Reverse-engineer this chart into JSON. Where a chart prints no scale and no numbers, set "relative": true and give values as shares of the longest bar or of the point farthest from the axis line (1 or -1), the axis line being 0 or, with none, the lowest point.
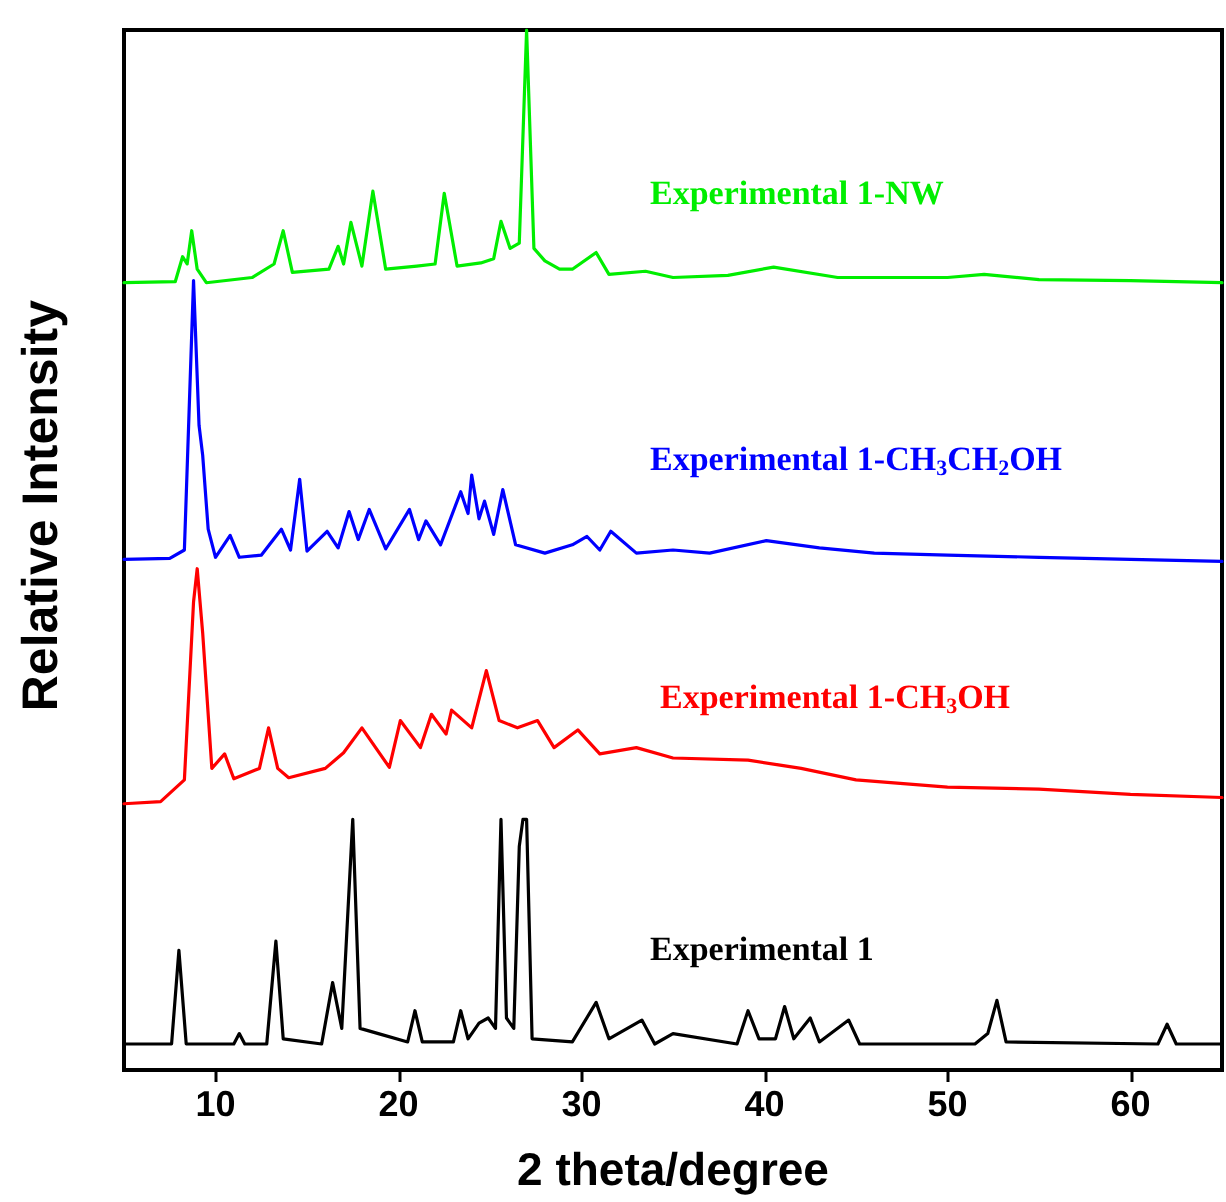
{
  "chart_data": {
    "type": "line",
    "relative": true,
    "xlabel": "2 theta/degree",
    "ylabel": "Relative Intensity",
    "xlim": [
      5,
      65
    ],
    "xticks": [
      10,
      20,
      30,
      40,
      50,
      60
    ],
    "grid": false,
    "legend": false,
    "marker": "none",
    "series": [
      {
        "name": "Experimental 1-NW",
        "color": "#00ee00",
        "x": [
          5,
          7.8,
          8.2,
          8.45,
          8.7,
          9.0,
          9.5,
          12,
          13.2,
          13.7,
          14.2,
          16.2,
          16.7,
          17.0,
          17.4,
          18.0,
          18.6,
          19.3,
          21,
          22.0,
          22.5,
          23.2,
          24.5,
          25.2,
          25.6,
          26.1,
          26.6,
          27.0,
          27.4,
          28,
          28.8,
          29.5,
          30.8,
          31.5,
          33.5,
          35,
          38,
          40.5,
          44,
          47,
          50,
          52,
          55,
          60,
          65
        ],
        "values": [
          0.757,
          0.758,
          0.782,
          0.775,
          0.807,
          0.77,
          0.757,
          0.762,
          0.775,
          0.807,
          0.767,
          0.77,
          0.792,
          0.775,
          0.815,
          0.773,
          0.845,
          0.77,
          0.773,
          0.775,
          0.843,
          0.773,
          0.776,
          0.78,
          0.816,
          0.79,
          0.795,
          1.0,
          0.79,
          0.778,
          0.77,
          0.77,
          0.786,
          0.765,
          0.768,
          0.762,
          0.764,
          0.772,
          0.762,
          0.762,
          0.762,
          0.765,
          0.76,
          0.759,
          0.757
        ]
      },
      {
        "name": "Experimental 1-CH$_{3}$CH$_{2}$OH",
        "color": "#0000ff",
        "x": [
          5,
          7.5,
          8.3,
          8.8,
          9.1,
          9.3,
          9.6,
          10,
          10.8,
          11.3,
          12.5,
          13.6,
          14.1,
          14.6,
          15,
          16.1,
          16.7,
          17.3,
          17.8,
          18.4,
          19.3,
          20.6,
          21.1,
          21.5,
          22.3,
          23.4,
          23.8,
          24.0,
          24.4,
          24.7,
          25.2,
          25.7,
          26.4,
          28,
          29.5,
          30.3,
          31,
          31.6,
          33,
          35,
          37,
          40.1,
          43,
          46,
          50,
          55,
          60,
          65
        ],
        "values": [
          0.491,
          0.492,
          0.5,
          0.759,
          0.62,
          0.591,
          0.52,
          0.493,
          0.514,
          0.493,
          0.495,
          0.52,
          0.5,
          0.568,
          0.499,
          0.518,
          0.502,
          0.537,
          0.51,
          0.539,
          0.501,
          0.539,
          0.51,
          0.528,
          0.505,
          0.556,
          0.535,
          0.572,
          0.53,
          0.547,
          0.515,
          0.558,
          0.505,
          0.497,
          0.505,
          0.513,
          0.5,
          0.518,
          0.497,
          0.5,
          0.497,
          0.509,
          0.502,
          0.497,
          0.495,
          0.493,
          0.491,
          0.489
        ]
      },
      {
        "name": "Experimental 1-CH$_{3}$OH",
        "color": "#ff0000",
        "x": [
          5,
          7,
          8.3,
          8.8,
          9.0,
          9.3,
          9.8,
          10.5,
          11,
          12.4,
          12.9,
          13.4,
          14,
          16,
          17,
          18,
          19.5,
          20.1,
          21.2,
          21.8,
          22.6,
          22.9,
          24,
          24.8,
          25.5,
          26.5,
          27.6,
          28.5,
          29.8,
          31,
          33,
          35,
          39.1,
          42,
          45,
          50,
          55,
          60,
          65
        ],
        "values": [
          0.256,
          0.258,
          0.279,
          0.45,
          0.482,
          0.42,
          0.29,
          0.304,
          0.28,
          0.29,
          0.329,
          0.29,
          0.281,
          0.29,
          0.305,
          0.329,
          0.291,
          0.336,
          0.31,
          0.342,
          0.323,
          0.346,
          0.329,
          0.384,
          0.336,
          0.329,
          0.336,
          0.31,
          0.327,
          0.304,
          0.31,
          0.3,
          0.298,
          0.29,
          0.279,
          0.272,
          0.27,
          0.265,
          0.262
        ]
      },
      {
        "name": "Experimental 1",
        "color": "#000000",
        "x": [
          5,
          7.6,
          8.0,
          8.4,
          11,
          11.3,
          11.6,
          12.8,
          13.3,
          13.7,
          15.8,
          16.4,
          16.9,
          17.5,
          17.9,
          18.9,
          20.5,
          20.9,
          21.3,
          23.0,
          23.4,
          23.8,
          24.4,
          24.9,
          25.3,
          25.6,
          25.9,
          26.3,
          26.6,
          26.8,
          27.0,
          27.3,
          29.5,
          30.8,
          31.5,
          33.3,
          34,
          35.0,
          38.5,
          39.1,
          39.7,
          40.6,
          41.1,
          41.6,
          42.5,
          43,
          44.6,
          45.2,
          51.5,
          52.2,
          52.7,
          53.2,
          61.5,
          62.0,
          62.5,
          65
        ],
        "values": [
          0.025,
          0.025,
          0.115,
          0.025,
          0.025,
          0.035,
          0.025,
          0.025,
          0.124,
          0.03,
          0.025,
          0.084,
          0.04,
          0.241,
          0.04,
          0.035,
          0.027,
          0.057,
          0.027,
          0.027,
          0.057,
          0.03,
          0.045,
          0.05,
          0.04,
          0.241,
          0.05,
          0.04,
          0.215,
          0.241,
          0.241,
          0.03,
          0.027,
          0.065,
          0.03,
          0.048,
          0.025,
          0.035,
          0.025,
          0.057,
          0.03,
          0.03,
          0.061,
          0.03,
          0.05,
          0.027,
          0.048,
          0.025,
          0.025,
          0.035,
          0.067,
          0.027,
          0.025,
          0.044,
          0.025,
          0.025
        ]
      }
    ]
  }
}
